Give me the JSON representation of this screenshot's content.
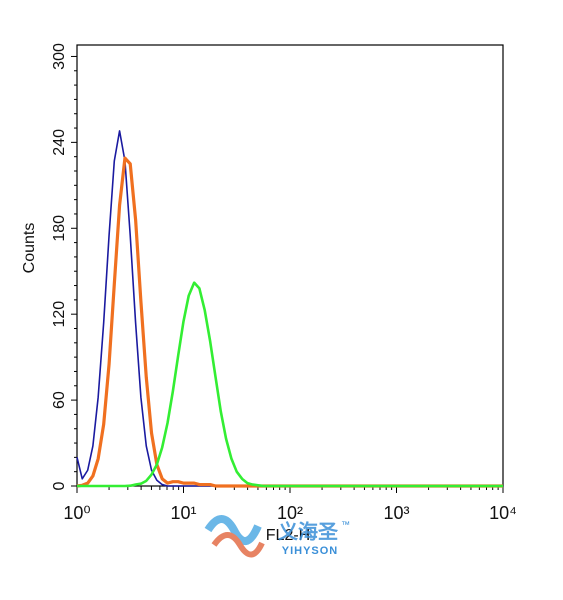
{
  "chart_data": {
    "type": "line",
    "x_label": "FL2-H",
    "y_label": "Counts",
    "x": [
      1,
      1.12,
      1.26,
      1.41,
      1.58,
      1.78,
      2,
      2.24,
      2.51,
      2.82,
      3.16,
      3.55,
      3.98,
      4.47,
      5.01,
      5.62,
      6.31,
      7.08,
      7.94,
      8.91,
      10,
      11.2,
      12.6,
      14.1,
      15.8,
      17.8,
      20,
      22.4,
      25.1,
      28.2,
      31.6,
      35.5,
      39.8,
      44.7,
      50.1,
      56.2,
      63.1,
      70.8,
      79.4,
      89.1,
      100,
      1000,
      10000
    ],
    "series": [
      {
        "color": "#1a1aa0",
        "values": [
          20,
          5,
          11,
          28,
          62,
          114,
          175,
          227,
          248,
          227,
          175,
          114,
          62,
          28,
          11,
          4,
          1,
          0,
          0,
          0,
          0,
          0,
          0,
          0,
          0,
          0,
          0,
          0,
          0,
          0,
          0,
          0,
          0,
          0,
          0,
          0,
          0,
          0,
          0,
          0,
          0,
          0,
          0
        ]
      },
      {
        "color": "#f07020",
        "values": [
          0,
          0.5,
          2,
          7,
          19,
          43,
          85,
          141,
          196,
          229,
          225,
          186,
          129,
          76,
          37,
          15,
          5,
          2,
          3,
          3,
          2,
          2,
          2,
          1,
          1,
          1,
          0,
          0,
          0,
          0,
          0,
          0,
          0,
          0,
          0,
          0,
          0,
          0,
          0,
          0,
          0,
          0,
          0
        ]
      },
      {
        "color": "#33ee33",
        "values": [
          0,
          0,
          0,
          0,
          0,
          0,
          0,
          0,
          0,
          0,
          0.2,
          1,
          1.6,
          3.6,
          8,
          15,
          27,
          44,
          66,
          91,
          115,
          133,
          142,
          138,
          123,
          101,
          76,
          52,
          33,
          19,
          10,
          5,
          2,
          1,
          0.5,
          0,
          0,
          0,
          0,
          0,
          0,
          0,
          0
        ]
      }
    ],
    "xlim": [
      1,
      10000
    ],
    "log_x": true,
    "xticks": [
      {
        "value": 1,
        "label": "10⁰"
      },
      {
        "value": 10,
        "label": "10¹"
      },
      {
        "value": 100,
        "label": "10²"
      },
      {
        "value": 1000,
        "label": "10³"
      },
      {
        "value": 10000,
        "label": "10⁴"
      }
    ],
    "ylim": [
      0,
      308
    ],
    "yticks": [
      0,
      60,
      120,
      180,
      240,
      300
    ]
  },
  "watermark": {
    "chinese": "义海圣",
    "english": "YIHYSON",
    "trademark": "™"
  }
}
